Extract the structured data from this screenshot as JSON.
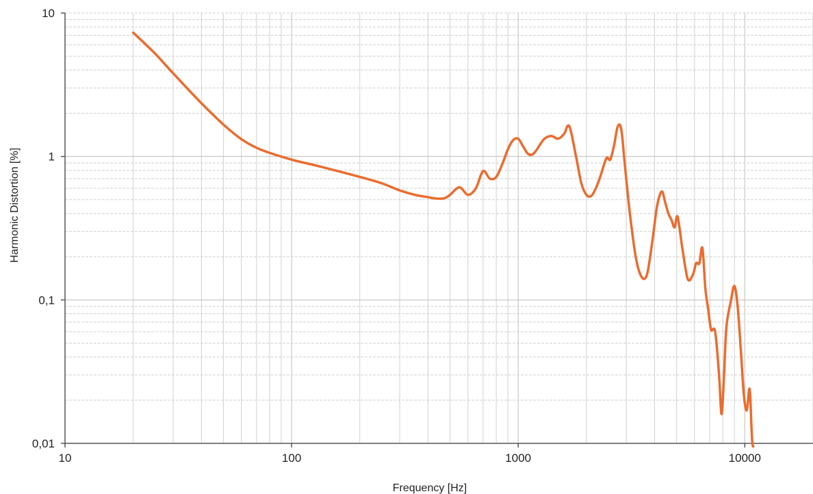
{
  "chart_data": {
    "type": "line",
    "title": "",
    "xlabel": "Frequency [Hz]",
    "ylabel": "Harmonic Distortion [%]",
    "x_scale": "log",
    "y_scale": "log",
    "xlim": [
      10,
      20000
    ],
    "ylim": [
      0.01,
      10
    ],
    "x_tick_labels": [
      "10",
      "100",
      "1000",
      "10000"
    ],
    "y_tick_labels": [
      "0,01",
      "0,1",
      "1",
      "10"
    ],
    "grid": true,
    "legend": "none",
    "series": [
      {
        "color": "#ec6b2d",
        "x": [
          20,
          25,
          30,
          40,
          50,
          60,
          70,
          80,
          100,
          130,
          160,
          200,
          250,
          300,
          350,
          400,
          430,
          470,
          500,
          550,
          600,
          650,
          700,
          750,
          800,
          850,
          900,
          950,
          1000,
          1050,
          1100,
          1150,
          1200,
          1300,
          1400,
          1500,
          1600,
          1650,
          1700,
          1800,
          1900,
          2000,
          2100,
          2200,
          2300,
          2450,
          2550,
          2650,
          2750,
          2850,
          2950,
          3100,
          3300,
          3500,
          3700,
          3900,
          4100,
          4300,
          4450,
          4600,
          4750,
          4900,
          5050,
          5300,
          5600,
          5900,
          6100,
          6300,
          6500,
          6700,
          6900,
          7100,
          7400,
          7700,
          7900,
          8100,
          8300,
          8700,
          9000,
          9300,
          9600,
          9900,
          10200,
          10500,
          10700,
          10800,
          10900
        ],
        "y": [
          7.3,
          5.2,
          3.8,
          2.35,
          1.67,
          1.32,
          1.15,
          1.06,
          0.95,
          0.86,
          0.79,
          0.72,
          0.65,
          0.58,
          0.54,
          0.52,
          0.51,
          0.51,
          0.54,
          0.61,
          0.54,
          0.6,
          0.79,
          0.7,
          0.72,
          0.88,
          1.12,
          1.3,
          1.33,
          1.18,
          1.05,
          1.03,
          1.1,
          1.32,
          1.39,
          1.33,
          1.45,
          1.63,
          1.55,
          1.0,
          0.65,
          0.54,
          0.53,
          0.6,
          0.72,
          0.97,
          0.95,
          1.2,
          1.62,
          1.55,
          0.9,
          0.42,
          0.2,
          0.145,
          0.15,
          0.25,
          0.45,
          0.57,
          0.48,
          0.4,
          0.36,
          0.32,
          0.38,
          0.23,
          0.14,
          0.15,
          0.18,
          0.18,
          0.23,
          0.12,
          0.085,
          0.062,
          0.06,
          0.03,
          0.016,
          0.03,
          0.065,
          0.1,
          0.125,
          0.09,
          0.045,
          0.022,
          0.017,
          0.024,
          0.013,
          0.01,
          0.0095
        ]
      }
    ]
  }
}
